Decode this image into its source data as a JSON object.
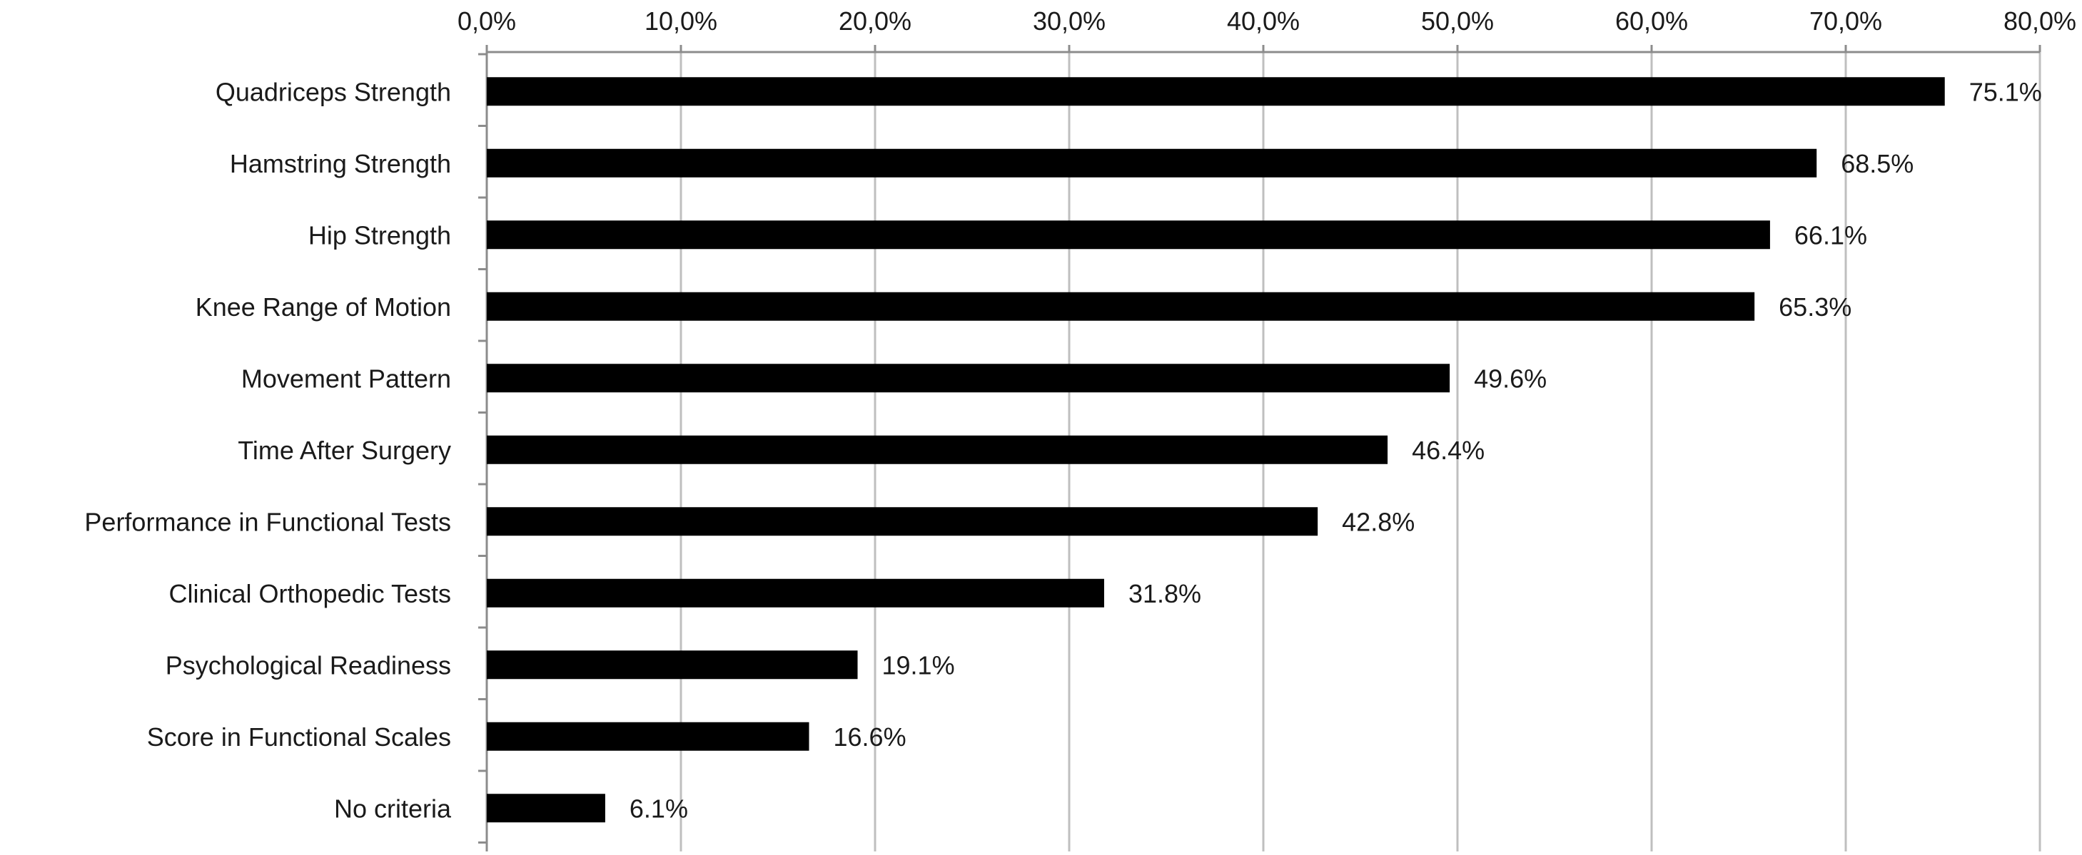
{
  "chart_data": {
    "type": "bar",
    "orientation": "horizontal",
    "categories": [
      "Quadriceps Strength",
      "Hamstring Strength",
      "Hip Strength",
      "Knee Range of Motion",
      "Movement Pattern",
      "Time After Surgery",
      "Performance in Functional Tests",
      "Clinical Orthopedic Tests",
      "Psychological Readiness",
      "Score in Functional Scales",
      "No criteria"
    ],
    "values": [
      75.1,
      68.5,
      66.1,
      65.3,
      49.6,
      46.4,
      42.8,
      31.8,
      19.1,
      16.6,
      6.1
    ],
    "data_labels": [
      "75.1%",
      "68.5%",
      "66.1%",
      "65.3%",
      "49.6%",
      "46.4%",
      "42.8%",
      "31.8%",
      "19.1%",
      "16.6%",
      "6.1%"
    ],
    "x_ticks": [
      0,
      10,
      20,
      30,
      40,
      50,
      60,
      70,
      80
    ],
    "x_tick_labels": [
      "0,0%",
      "10,0%",
      "20,0%",
      "30,0%",
      "40,0%",
      "50,0%",
      "60,0%",
      "70,0%",
      "80,0%"
    ],
    "xlim": [
      0,
      80
    ],
    "x_axis_position": "top",
    "grid": true,
    "legend": false,
    "title": "",
    "xlabel": "",
    "ylabel": "",
    "colors": {
      "bar": "#000000",
      "grid": "#bfbfbf",
      "axis": "#8c8c8c",
      "text": "#1a1a1a"
    }
  }
}
